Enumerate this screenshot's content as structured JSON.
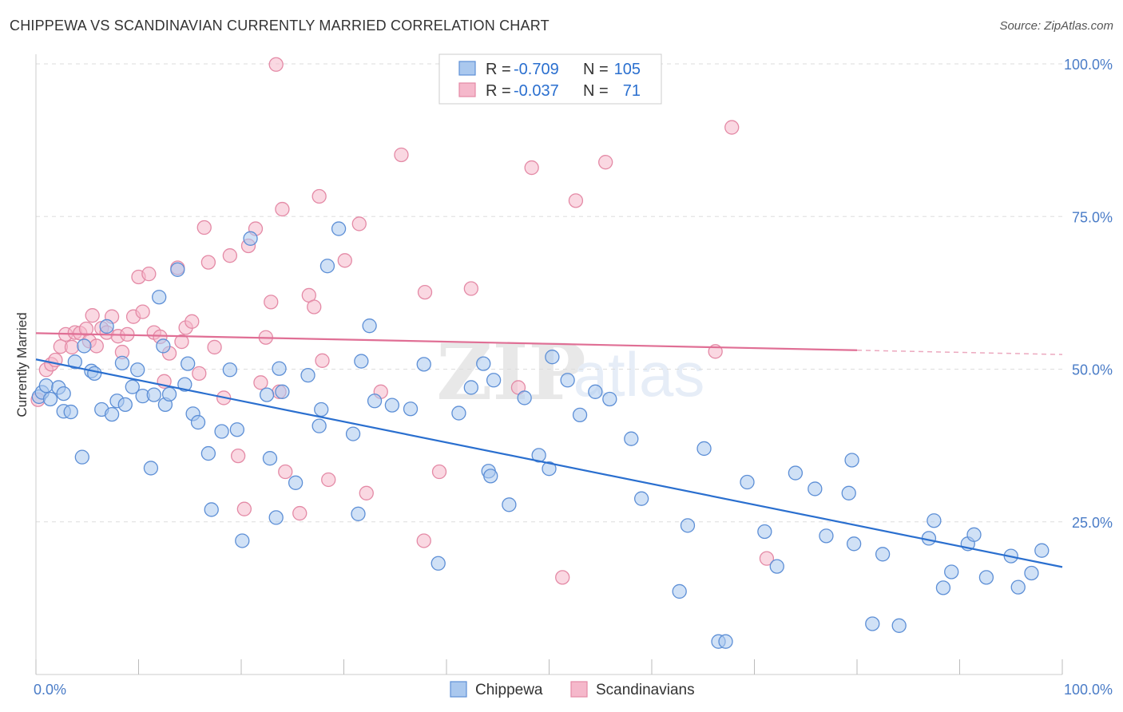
{
  "title": "CHIPPEWA VS SCANDINAVIAN CURRENTLY MARRIED CORRELATION CHART",
  "source": "Source: ZipAtlas.com",
  "watermark": {
    "zip": "ZIP",
    "atlas": "atlas"
  },
  "colors": {
    "blue_fill": "#aac8ee",
    "blue_stroke": "#5d8fd6",
    "blue_line": "#2a6fcf",
    "pink_fill": "#f5b8cb",
    "pink_stroke": "#e48aa6",
    "pink_line": "#e06f95",
    "tick_text": "#4a7cc7",
    "grid": "#dddddd"
  },
  "legend": {
    "rows": [
      {
        "r_label": "R =",
        "r_value": "-0.709",
        "n_label": "N =",
        "n_value": "105",
        "color": "blue"
      },
      {
        "r_label": "R =",
        "r_value": "-0.037",
        "n_label": "N =",
        "n_value": "71",
        "color": "pink"
      }
    ]
  },
  "bottom_legend": [
    {
      "name": "Chippewa",
      "color": "blue"
    },
    {
      "name": "Scandinavians",
      "color": "pink"
    }
  ],
  "chart_data": {
    "type": "scatter",
    "title": "CHIPPEWA VS SCANDINAVIAN CURRENTLY MARRIED CORRELATION CHART",
    "xlabel": "",
    "ylabel": "Currently Married",
    "xlim": [
      0,
      100
    ],
    "ylim": [
      0,
      100
    ],
    "x_tick_labels": [
      {
        "value": 0,
        "label": "0.0%"
      },
      {
        "value": 100,
        "label": "100.0%"
      }
    ],
    "y_tick_labels": [
      {
        "value": 25,
        "label": "25.0%"
      },
      {
        "value": 50,
        "label": "50.0%"
      },
      {
        "value": 75,
        "label": "75.0%"
      },
      {
        "value": 100,
        "label": "100.0%"
      }
    ],
    "grid": true,
    "legend_position": "top-center",
    "series": [
      {
        "name": "Chippewa",
        "color": "blue",
        "trend": {
          "x": [
            0,
            100
          ],
          "y": [
            51.6,
            17.6
          ],
          "dashed_from": 100
        },
        "points": [
          [
            0.3,
            45.5
          ],
          [
            0.6,
            46.2
          ],
          [
            1.0,
            47.3
          ],
          [
            1.4,
            45.1
          ],
          [
            2.2,
            47.0
          ],
          [
            2.7,
            43.1
          ],
          [
            2.7,
            46.0
          ],
          [
            3.4,
            43.0
          ],
          [
            3.8,
            51.2
          ],
          [
            4.5,
            35.6
          ],
          [
            4.7,
            53.8
          ],
          [
            5.4,
            49.7
          ],
          [
            5.7,
            49.3
          ],
          [
            6.4,
            43.4
          ],
          [
            6.9,
            57.0
          ],
          [
            7.4,
            42.6
          ],
          [
            7.9,
            44.8
          ],
          [
            8.4,
            51.0
          ],
          [
            8.7,
            44.2
          ],
          [
            9.4,
            47.1
          ],
          [
            9.9,
            49.9
          ],
          [
            10.4,
            45.6
          ],
          [
            11.2,
            33.8
          ],
          [
            11.5,
            45.8
          ],
          [
            12.0,
            61.8
          ],
          [
            12.4,
            53.8
          ],
          [
            12.6,
            44.2
          ],
          [
            13.0,
            45.9
          ],
          [
            13.8,
            66.3
          ],
          [
            14.5,
            47.5
          ],
          [
            14.8,
            50.9
          ],
          [
            15.3,
            42.7
          ],
          [
            15.8,
            41.3
          ],
          [
            16.8,
            36.2
          ],
          [
            17.1,
            27.0
          ],
          [
            18.1,
            39.8
          ],
          [
            18.9,
            49.9
          ],
          [
            19.6,
            40.1
          ],
          [
            20.1,
            21.9
          ],
          [
            20.9,
            71.4
          ],
          [
            22.5,
            45.8
          ],
          [
            22.8,
            35.4
          ],
          [
            23.4,
            25.7
          ],
          [
            23.7,
            50.1
          ],
          [
            24.0,
            46.3
          ],
          [
            25.3,
            31.4
          ],
          [
            26.5,
            49.0
          ],
          [
            27.6,
            40.7
          ],
          [
            27.8,
            43.4
          ],
          [
            28.4,
            66.9
          ],
          [
            29.5,
            73.0
          ],
          [
            30.9,
            39.4
          ],
          [
            31.4,
            26.3
          ],
          [
            31.7,
            51.3
          ],
          [
            32.5,
            57.1
          ],
          [
            33.0,
            44.8
          ],
          [
            34.7,
            44.1
          ],
          [
            36.5,
            43.5
          ],
          [
            37.8,
            50.8
          ],
          [
            39.2,
            18.2
          ],
          [
            41.2,
            42.8
          ],
          [
            42.4,
            47.0
          ],
          [
            43.6,
            50.9
          ],
          [
            44.1,
            33.3
          ],
          [
            44.3,
            32.5
          ],
          [
            44.6,
            48.2
          ],
          [
            46.1,
            27.8
          ],
          [
            47.6,
            45.3
          ],
          [
            49.0,
            35.9
          ],
          [
            50.0,
            33.7
          ],
          [
            50.3,
            52.0
          ],
          [
            51.8,
            48.2
          ],
          [
            53.0,
            42.5
          ],
          [
            54.5,
            46.3
          ],
          [
            55.9,
            45.1
          ],
          [
            58.0,
            38.6
          ],
          [
            59.0,
            28.8
          ],
          [
            62.7,
            13.6
          ],
          [
            63.5,
            24.4
          ],
          [
            65.1,
            37.0
          ],
          [
            66.5,
            5.4
          ],
          [
            67.2,
            5.4
          ],
          [
            69.3,
            31.5
          ],
          [
            71.0,
            23.4
          ],
          [
            72.2,
            17.7
          ],
          [
            74.0,
            33.0
          ],
          [
            75.9,
            30.4
          ],
          [
            77.0,
            22.7
          ],
          [
            79.2,
            29.7
          ],
          [
            79.5,
            35.1
          ],
          [
            79.7,
            21.4
          ],
          [
            81.5,
            8.3
          ],
          [
            82.5,
            19.7
          ],
          [
            84.1,
            8.0
          ],
          [
            87.0,
            22.3
          ],
          [
            87.5,
            25.2
          ],
          [
            88.4,
            14.2
          ],
          [
            89.2,
            16.8
          ],
          [
            90.8,
            21.4
          ],
          [
            91.4,
            22.9
          ],
          [
            92.6,
            15.9
          ],
          [
            95.0,
            19.4
          ],
          [
            95.7,
            14.3
          ],
          [
            97.0,
            16.6
          ],
          [
            98.0,
            20.3
          ]
        ]
      },
      {
        "name": "Scandinavians",
        "color": "pink",
        "trend": {
          "x": [
            0,
            100
          ],
          "y": [
            55.9,
            52.4
          ],
          "dashed_from": 80
        },
        "points": [
          [
            0.2,
            45.0
          ],
          [
            1.0,
            49.9
          ],
          [
            1.5,
            50.8
          ],
          [
            1.9,
            51.5
          ],
          [
            2.4,
            53.7
          ],
          [
            2.9,
            55.7
          ],
          [
            3.5,
            53.6
          ],
          [
            3.8,
            56.0
          ],
          [
            4.3,
            55.9
          ],
          [
            4.9,
            56.6
          ],
          [
            5.2,
            54.6
          ],
          [
            5.5,
            58.8
          ],
          [
            5.9,
            53.8
          ],
          [
            6.4,
            56.7
          ],
          [
            6.9,
            56.0
          ],
          [
            7.4,
            58.6
          ],
          [
            8.0,
            55.4
          ],
          [
            8.4,
            52.8
          ],
          [
            8.9,
            55.7
          ],
          [
            9.5,
            58.6
          ],
          [
            10.0,
            65.1
          ],
          [
            10.4,
            59.4
          ],
          [
            11.0,
            65.6
          ],
          [
            11.5,
            56.0
          ],
          [
            12.1,
            55.3
          ],
          [
            12.5,
            48.0
          ],
          [
            13.0,
            52.6
          ],
          [
            13.8,
            66.6
          ],
          [
            14.2,
            54.5
          ],
          [
            14.6,
            56.8
          ],
          [
            15.2,
            57.8
          ],
          [
            15.9,
            49.3
          ],
          [
            16.4,
            73.2
          ],
          [
            16.8,
            67.5
          ],
          [
            17.4,
            53.6
          ],
          [
            18.3,
            45.3
          ],
          [
            18.9,
            68.6
          ],
          [
            19.7,
            35.8
          ],
          [
            20.3,
            27.1
          ],
          [
            20.7,
            70.2
          ],
          [
            21.4,
            73.0
          ],
          [
            21.9,
            47.8
          ],
          [
            22.4,
            55.2
          ],
          [
            22.9,
            61.0
          ],
          [
            23.7,
            46.3
          ],
          [
            24.0,
            76.2
          ],
          [
            24.3,
            33.2
          ],
          [
            25.7,
            26.4
          ],
          [
            26.6,
            62.1
          ],
          [
            27.1,
            60.2
          ],
          [
            27.6,
            78.3
          ],
          [
            27.9,
            51.4
          ],
          [
            28.5,
            31.9
          ],
          [
            30.1,
            67.8
          ],
          [
            31.5,
            73.8
          ],
          [
            32.2,
            29.7
          ],
          [
            33.6,
            46.3
          ],
          [
            35.6,
            85.1
          ],
          [
            37.8,
            21.9
          ],
          [
            37.9,
            62.6
          ],
          [
            39.3,
            33.2
          ],
          [
            42.4,
            63.2
          ],
          [
            47.0,
            47.0
          ],
          [
            48.3,
            83.0
          ],
          [
            51.3,
            15.9
          ],
          [
            52.6,
            77.6
          ],
          [
            55.5,
            83.9
          ],
          [
            66.2,
            52.9
          ],
          [
            67.8,
            89.6
          ],
          [
            71.2,
            19.0
          ],
          [
            23.4,
            99.9
          ]
        ]
      }
    ]
  }
}
